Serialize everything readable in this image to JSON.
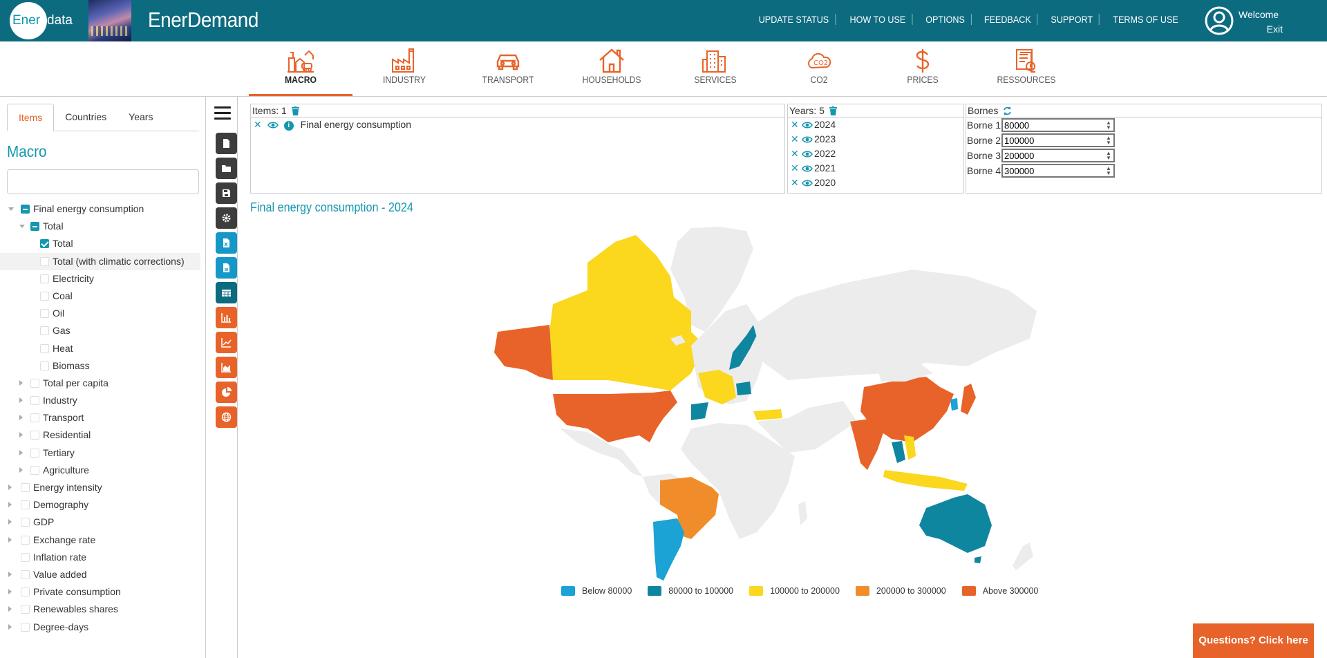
{
  "header": {
    "logo_text": "Ener",
    "logo_text_rest": "data",
    "app_title": "EnerDemand",
    "nav": [
      "UPDATE STATUS",
      "HOW TO USE",
      "OPTIONS",
      "FEEDBACK",
      "SUPPORT",
      "TERMS OF USE"
    ],
    "welcome": "Welcome",
    "exit": "Exit"
  },
  "categories": [
    {
      "label": "MACRO",
      "icon": "macro-icon",
      "active": true
    },
    {
      "label": "INDUSTRY",
      "icon": "factory-icon"
    },
    {
      "label": "TRANSPORT",
      "icon": "car-icon"
    },
    {
      "label": "HOUSEHOLDS",
      "icon": "house-icon"
    },
    {
      "label": "SERVICES",
      "icon": "building-icon"
    },
    {
      "label": "CO2",
      "icon": "co2-cloud-icon"
    },
    {
      "label": "PRICES",
      "icon": "dollar-icon"
    },
    {
      "label": "RESSOURCES",
      "icon": "documents-icon"
    }
  ],
  "left": {
    "tabs": [
      "Items",
      "Countries",
      "Years"
    ],
    "heading": "Macro",
    "search_value": "",
    "tree": [
      {
        "label": "Final energy consumption",
        "level": 0,
        "arrow": "down",
        "state": "minus"
      },
      {
        "label": "Total",
        "level": 1,
        "arrow": "down",
        "state": "minus"
      },
      {
        "label": "Total",
        "level": 2,
        "arrow": "",
        "state": "check"
      },
      {
        "label": "Total (with climatic corrections)",
        "level": 2,
        "arrow": "",
        "state": "",
        "highlight": true
      },
      {
        "label": "Electricity",
        "level": 2,
        "arrow": "",
        "state": ""
      },
      {
        "label": "Coal",
        "level": 2,
        "arrow": "",
        "state": ""
      },
      {
        "label": "Oil",
        "level": 2,
        "arrow": "",
        "state": ""
      },
      {
        "label": "Gas",
        "level": 2,
        "arrow": "",
        "state": ""
      },
      {
        "label": "Heat",
        "level": 2,
        "arrow": "",
        "state": ""
      },
      {
        "label": "Biomass",
        "level": 2,
        "arrow": "",
        "state": ""
      },
      {
        "label": "Total per capita",
        "level": 1,
        "arrow": "right",
        "state": ""
      },
      {
        "label": "Industry",
        "level": 1,
        "arrow": "right",
        "state": ""
      },
      {
        "label": "Transport",
        "level": 1,
        "arrow": "right",
        "state": ""
      },
      {
        "label": "Residential",
        "level": 1,
        "arrow": "right",
        "state": ""
      },
      {
        "label": "Tertiary",
        "level": 1,
        "arrow": "right",
        "state": ""
      },
      {
        "label": "Agriculture",
        "level": 1,
        "arrow": "right",
        "state": ""
      },
      {
        "label": "Energy intensity",
        "level": 0,
        "arrow": "right",
        "state": ""
      },
      {
        "label": "Demography",
        "level": 0,
        "arrow": "right",
        "state": ""
      },
      {
        "label": "GDP",
        "level": 0,
        "arrow": "right",
        "state": ""
      },
      {
        "label": "Exchange rate",
        "level": 0,
        "arrow": "right",
        "state": ""
      },
      {
        "label": "Inflation rate",
        "level": 0,
        "arrow": "",
        "state": ""
      },
      {
        "label": "Value added",
        "level": 0,
        "arrow": "right",
        "state": ""
      },
      {
        "label": "Private consumption",
        "level": 0,
        "arrow": "right",
        "state": ""
      },
      {
        "label": "Renewables shares",
        "level": 0,
        "arrow": "right",
        "state": ""
      },
      {
        "label": "Degree-days",
        "level": 0,
        "arrow": "right",
        "state": ""
      }
    ]
  },
  "toolbar": [
    {
      "name": "new-document-button",
      "icon": "document-icon",
      "color": "dark"
    },
    {
      "name": "open-folder-button",
      "icon": "folder-icon",
      "color": "dark"
    },
    {
      "name": "save-button",
      "icon": "save-icon",
      "color": "dark"
    },
    {
      "name": "settings-button",
      "icon": "gear-icon",
      "color": "dark"
    },
    {
      "name": "export-excel-button",
      "icon": "excel-file-icon",
      "color": "blue"
    },
    {
      "name": "export-pdf-button",
      "icon": "pdf-file-icon",
      "color": "blue"
    },
    {
      "name": "table-view-button",
      "icon": "table-icon",
      "color": "teal"
    },
    {
      "name": "bar-chart-button",
      "icon": "bar-chart-icon",
      "color": "orange"
    },
    {
      "name": "line-chart-button",
      "icon": "line-chart-icon",
      "color": "orange"
    },
    {
      "name": "area-chart-button",
      "icon": "area-chart-icon",
      "color": "orange"
    },
    {
      "name": "pie-chart-button",
      "icon": "pie-chart-icon",
      "color": "orange"
    },
    {
      "name": "map-view-button",
      "icon": "globe-icon",
      "color": "orange"
    }
  ],
  "items_box": {
    "header": "Items: 1",
    "items": [
      "Final energy consumption"
    ]
  },
  "years_box": {
    "header": "Years: 5",
    "years": [
      "2024",
      "2023",
      "2022",
      "2021",
      "2020"
    ]
  },
  "bornes_box": {
    "header": "Bornes",
    "bornes": [
      {
        "label": "Borne 1",
        "value": "80000"
      },
      {
        "label": "Borne 2",
        "value": "100000"
      },
      {
        "label": "Borne 3",
        "value": "200000"
      },
      {
        "label": "Borne 4",
        "value": "300000"
      }
    ]
  },
  "map": {
    "title": "Final energy consumption - 2024",
    "legend": [
      {
        "label": "Below 80000",
        "color": "#1aa3d4"
      },
      {
        "label": "80000 to 100000",
        "color": "#0f86a0"
      },
      {
        "label": "100000 to 200000",
        "color": "#fbd71e"
      },
      {
        "label": "200000 to 300000",
        "color": "#f08d2a"
      },
      {
        "label": "Above 300000",
        "color": "#e8632a"
      }
    ]
  },
  "help_button": "Questions? Click here"
}
